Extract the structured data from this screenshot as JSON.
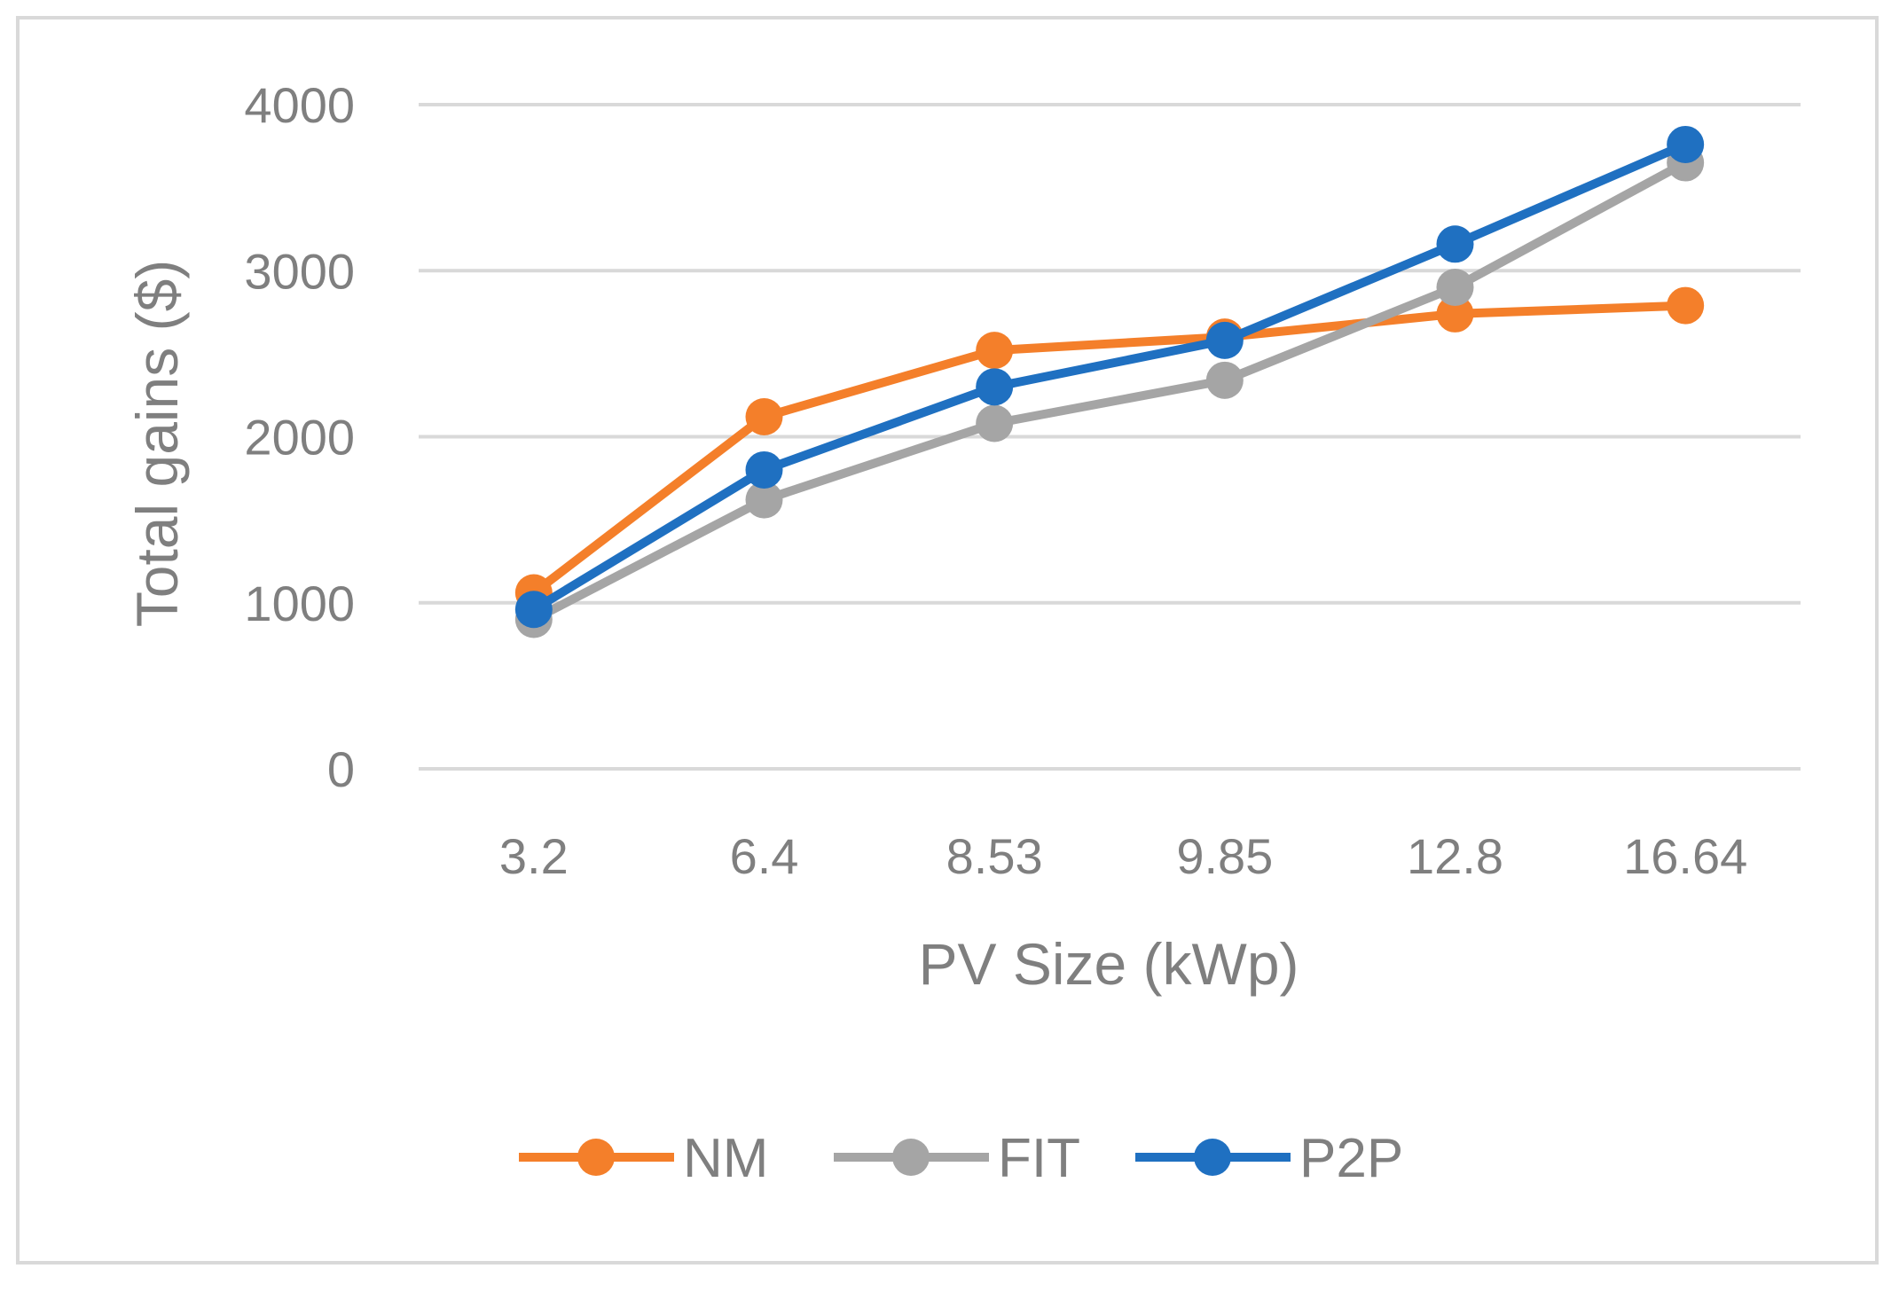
{
  "chart_data": {
    "type": "line",
    "title": "",
    "xlabel": "PV Size (kWp)",
    "ylabel": "Total gains ($)",
    "categories": [
      "3.2",
      "6.4",
      "8.53",
      "9.85",
      "12.8",
      "16.64"
    ],
    "ylim": [
      0,
      4000
    ],
    "yticks": [
      0,
      1000,
      2000,
      3000,
      4000
    ],
    "grid": true,
    "legend_position": "bottom",
    "series": [
      {
        "name": "NM",
        "color": "#f47f2a",
        "values": [
          1060,
          2120,
          2520,
          2600,
          2740,
          2790
        ]
      },
      {
        "name": "FIT",
        "color": "#a5a5a5",
        "values": [
          900,
          1620,
          2080,
          2340,
          2900,
          3650
        ]
      },
      {
        "name": "P2P",
        "color": "#1f70c1",
        "values": [
          960,
          1800,
          2300,
          2580,
          3160,
          3760
        ]
      }
    ]
  }
}
